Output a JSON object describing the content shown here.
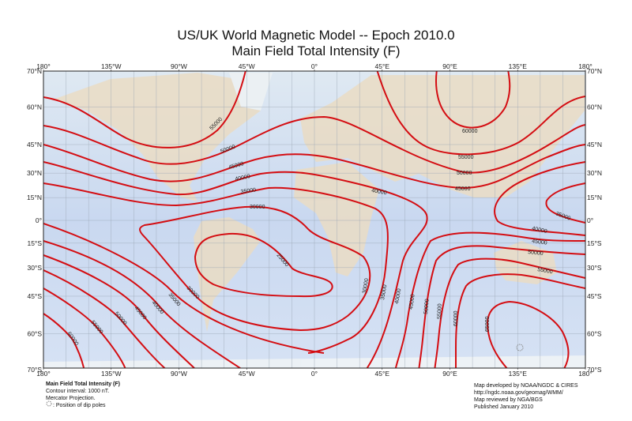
{
  "title": {
    "line1": "US/UK World Magnetic Model -- Epoch 2010.0",
    "line2": "Main Field Total Intensity (F)"
  },
  "map": {
    "projection": "Mercator",
    "lon_labels": [
      "180°",
      "135°W",
      "90°W",
      "45°W",
      "0°",
      "45°E",
      "90°E",
      "135°E",
      "180°"
    ],
    "lat_labels": [
      "70°N",
      "60°N",
      "45°N",
      "30°N",
      "15°N",
      "0°",
      "15°S",
      "30°S",
      "45°S",
      "60°S",
      "70°S"
    ],
    "lat_values": [
      70,
      60,
      45,
      30,
      15,
      0,
      -15,
      -30,
      -45,
      -60,
      -70
    ],
    "contour_color": "#d40d12",
    "contour_labels": {
      "n55000": "55000",
      "n50000": "50000",
      "n45000": "45000",
      "n40000": "40000",
      "n35000": "35000",
      "n30000": "30000",
      "e60000": "60000",
      "e55000": "55000",
      "e50000": "50000",
      "e45000": "45000",
      "e40000": "40000",
      "e35000": "35000",
      "s25000": "25000",
      "s30000": "30000",
      "s35000": "35000",
      "s40000": "40000",
      "s45000": "45000",
      "s50000": "50000",
      "s55000": "55000",
      "s60000": "60000",
      "a30000": "30000",
      "a35000": "35000",
      "a40000": "40000",
      "a45000": "45000",
      "a50000": "50000",
      "a55000": "55000",
      "a60000": "60000",
      "a65000": "65000",
      "au40000": "40000",
      "au45000": "45000",
      "au50000": "50000",
      "au55000": "55000"
    },
    "dip_pole_icon": "dip-pole-icon"
  },
  "legend": {
    "heading": "Main Field Total Intensity (F)",
    "interval": "Contour interval: 1000 nT.",
    "projection": "Mercator Projection.",
    "dip_poles": ": Position of dip poles"
  },
  "credits": {
    "line1": "Map developed by NOAA/NGDC & CIRES",
    "line2": "http://ngdc.noaa.gov/geomag/WMM/",
    "line3": "Map reviewed by NGA/BGS",
    "line4": "Published January 2010"
  }
}
